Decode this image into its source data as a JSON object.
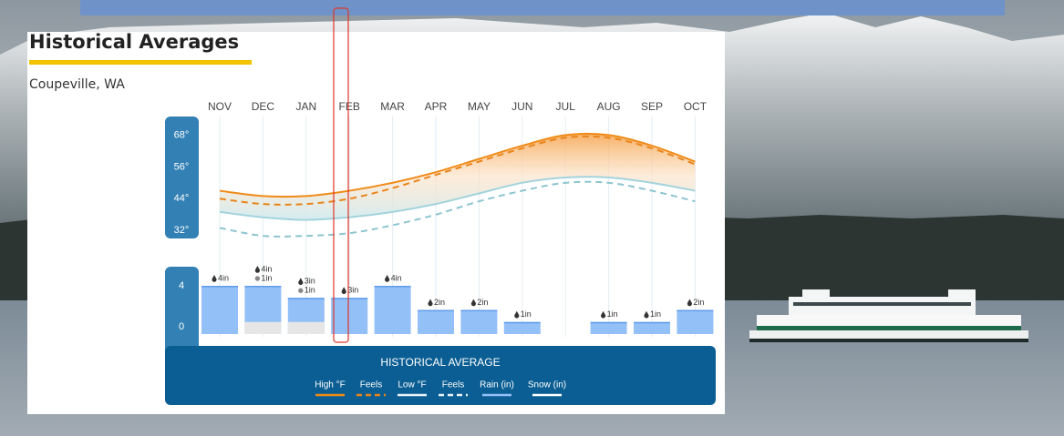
{
  "widget": {
    "title": "Historical Averages",
    "location": "Coupeville, WA",
    "footer": "HISTORICAL AVERAGE"
  },
  "chart_data": [
    {
      "type": "line",
      "categories": [
        "NOV",
        "DEC",
        "JAN",
        "FEB",
        "MAR",
        "APR",
        "MAY",
        "JUN",
        "JUL",
        "AUG",
        "SEP",
        "OCT"
      ],
      "ylim": [
        29,
        75
      ],
      "yticks": [
        {
          "value": 32,
          "label": "32°"
        },
        {
          "value": 44,
          "label": "44°"
        },
        {
          "value": 56,
          "label": "56°"
        },
        {
          "value": 68,
          "label": "68°"
        }
      ],
      "series": [
        {
          "name": "High °F",
          "color": "#ef8a17",
          "style": "solid",
          "values": [
            47,
            45,
            45,
            47,
            50,
            54,
            59,
            64,
            68,
            68,
            64,
            58
          ]
        },
        {
          "name": "Feels",
          "color": "#e9841a",
          "style": "dashed",
          "values": [
            44,
            42,
            42,
            44,
            48,
            53,
            58,
            63,
            67,
            67,
            63,
            57
          ]
        },
        {
          "name": "Low °F",
          "color": "#a3d3dc",
          "style": "solid",
          "values": [
            39,
            37,
            36,
            37,
            39,
            42,
            46,
            50,
            52,
            52,
            50,
            47
          ]
        },
        {
          "name": "Feels",
          "color": "#8cc4d0",
          "style": "dashed",
          "values": [
            33,
            30,
            30,
            31,
            34,
            38,
            43,
            47,
            50,
            50,
            47,
            43
          ]
        }
      ]
    },
    {
      "type": "bar",
      "ylim": [
        0,
        4
      ],
      "yticks": [
        0,
        4
      ],
      "series": [
        {
          "name": "Rain (in)",
          "color": "#93c0f7",
          "values": [
            4,
            4,
            3,
            3,
            4,
            2,
            2,
            1,
            null,
            1,
            1,
            2
          ],
          "value_labels": [
            "4in",
            "4in",
            "3in",
            "3in",
            "4in",
            "2in",
            "2in",
            "1in",
            null,
            "1in",
            "1in",
            "2in"
          ]
        },
        {
          "name": "Snow (in)",
          "color": "#e6e6e6",
          "values": [
            null,
            1,
            1,
            null,
            null,
            null,
            null,
            null,
            null,
            null,
            null,
            null
          ],
          "value_labels": [
            null,
            "1in",
            "1in",
            null,
            null,
            null,
            null,
            null,
            null,
            null,
            null,
            null
          ]
        }
      ]
    }
  ]
}
